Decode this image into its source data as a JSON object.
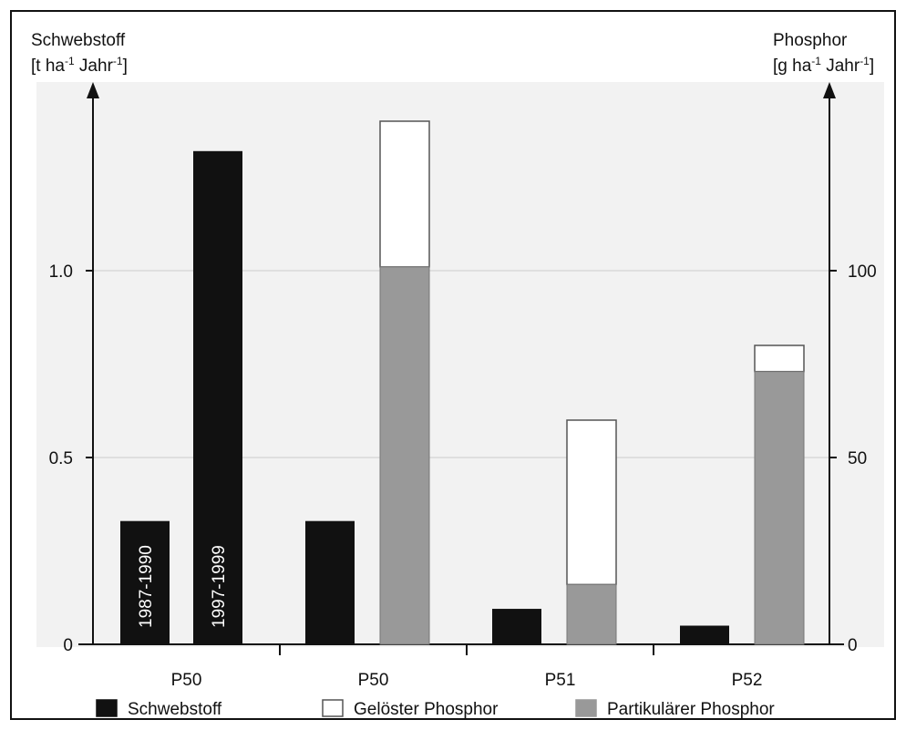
{
  "chart_data": {
    "type": "bar",
    "left_axis": {
      "title_line1": "Schwebstoff",
      "title_line2": "[t ha-1 Jahr-1]",
      "title_parts": [
        "[t ha",
        "-1",
        " Jahr",
        "-1",
        "]"
      ],
      "ylim": [
        0,
        1.0
      ],
      "ticks": [
        {
          "value": 0,
          "label": "0"
        },
        {
          "value": 0.5,
          "label": "0.5"
        },
        {
          "value": 1.0,
          "label": "1.0"
        }
      ]
    },
    "right_axis": {
      "title_line1": "Phosphor",
      "title_line2": "[g ha-1 Jahr-1]",
      "title_parts": [
        "[g ha",
        "-1",
        " Jahr",
        "-1",
        "]"
      ],
      "ylim": [
        0,
        100
      ],
      "ticks": [
        {
          "value": 0,
          "label": "0"
        },
        {
          "value": 50,
          "label": "50"
        },
        {
          "value": 100,
          "label": "100"
        }
      ]
    },
    "grid": true,
    "categories": [
      "P50",
      "P50",
      "P51",
      "P52"
    ],
    "legend": {
      "placement": "bottom",
      "items": [
        {
          "label": "Schwebstoff",
          "color": "#111111"
        },
        {
          "label": "Gelöster Phosphor",
          "color": "#ffffff"
        },
        {
          "label": "Partikulärer Phosphor",
          "color": "#999999"
        }
      ]
    },
    "schwebstoff_series": {
      "name": "Schwebstoff",
      "axis": "left",
      "bars": [
        {
          "category_index": 0,
          "slot": 0,
          "value": 0.33,
          "label": "1987-1990"
        },
        {
          "category_index": 0,
          "slot": 1,
          "value": 1.32,
          "label": "1997-1999"
        },
        {
          "category_index": 1,
          "slot": 0,
          "value": 0.33,
          "label": ""
        },
        {
          "category_index": 2,
          "slot": 0,
          "value": 0.095,
          "label": ""
        },
        {
          "category_index": 3,
          "slot": 0,
          "value": 0.05,
          "label": ""
        }
      ]
    },
    "phosphor_stacks": [
      {
        "category_index": 1,
        "partikulaer": 101,
        "geloest": 39
      },
      {
        "category_index": 2,
        "partikulaer": 16,
        "geloest": 44
      },
      {
        "category_index": 3,
        "partikulaer": 73,
        "geloest": 7
      }
    ]
  }
}
